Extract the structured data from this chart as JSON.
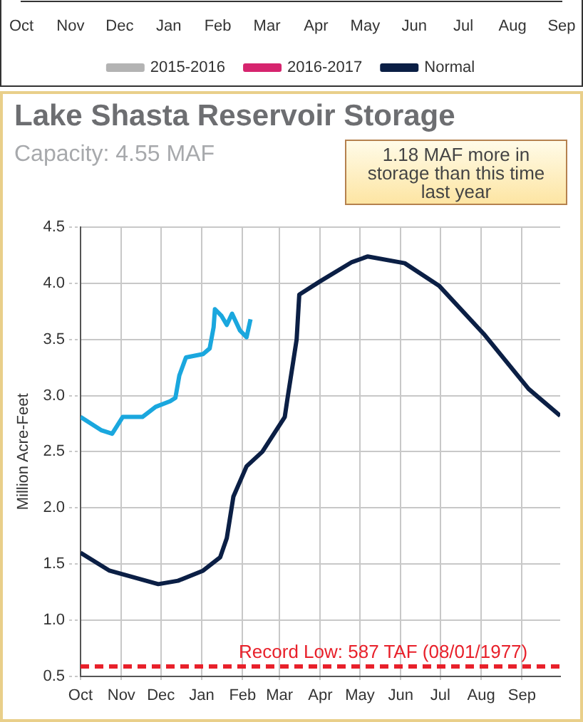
{
  "chart_data": [
    {
      "type": "other",
      "legend": "bottom",
      "categories": [
        "Oct",
        "Nov",
        "Dec",
        "Jan",
        "Feb",
        "Mar",
        "Apr",
        "May",
        "Jun",
        "Jul",
        "Aug",
        "Sep"
      ],
      "series": [
        {
          "name": "2015-2016",
          "color": "#b3b3b3",
          "values": [
            null,
            null,
            null,
            null,
            null,
            null,
            null,
            null,
            null,
            null,
            null,
            null
          ]
        },
        {
          "name": "2016-2017",
          "color": "#d6246e",
          "values": [
            null,
            null,
            null,
            null,
            null,
            null,
            null,
            null,
            null,
            null,
            null,
            null
          ]
        },
        {
          "name": "Normal",
          "color": "#0b1f45",
          "values": [
            null,
            null,
            null,
            null,
            null,
            null,
            null,
            null,
            null,
            null,
            null,
            null
          ]
        }
      ]
    },
    {
      "type": "line",
      "title": "Lake Shasta Reservoir Storage",
      "subtitle": "Capacity: 4.55 MAF",
      "ylabel": "Million Acre-Feet",
      "annotations": [
        "1.18 MAF more in storage than this time last year"
      ],
      "xlim": [
        "2016-10-01",
        "2017-09-30"
      ],
      "xticks": [
        {
          "value": "2016-10-01",
          "label": "Oct"
        },
        {
          "value": "2016-11-01",
          "label": "Nov"
        },
        {
          "value": "2016-12-01",
          "label": "Dec"
        },
        {
          "value": "2017-01-01",
          "label": "Jan"
        },
        {
          "value": "2017-02-01",
          "label": "Feb"
        },
        {
          "value": "2017-03-01",
          "label": "Mar"
        },
        {
          "value": "2017-04-01",
          "label": "Apr"
        },
        {
          "value": "2017-05-01",
          "label": "May"
        },
        {
          "value": "2017-06-01",
          "label": "Jun"
        },
        {
          "value": "2017-07-01",
          "label": "Jul"
        },
        {
          "value": "2017-08-01",
          "label": "Aug"
        },
        {
          "value": "2017-09-01",
          "label": "Sep"
        }
      ],
      "ylim": [
        0.5,
        4.5
      ],
      "yticks": [
        0.5,
        {
          "value": 1,
          "label": "1.0"
        },
        1.5,
        {
          "value": 2,
          "label": "2.0"
        },
        2.5,
        {
          "value": 3,
          "label": "3.0"
        },
        3.5,
        {
          "value": 4,
          "label": "4.0"
        },
        4.5
      ],
      "grid": true,
      "ref_lines": [
        {
          "axis": "y",
          "value": 0.587,
          "label": "Record Low: 587 TAF (08/01/1977)",
          "color": "#e8202a",
          "line_style": "dashed"
        }
      ],
      "series": [
        {
          "color": "#0b1f45",
          "x": [
            "2016-10-01",
            "2016-10-23",
            "2016-11-29",
            "2016-12-14",
            "2017-01-02",
            "2017-01-15",
            "2017-01-20",
            "2017-01-25",
            "2017-02-04",
            "2017-02-16",
            "2017-03-05",
            "2017-03-07",
            "2017-03-14",
            "2017-03-16",
            "2017-04-01",
            "2017-04-25",
            "2017-05-07",
            "2017-06-04",
            "2017-06-30",
            "2017-08-03",
            "2017-09-06",
            "2017-09-30"
          ],
          "values": [
            1.6,
            1.44,
            1.32,
            1.35,
            1.44,
            1.56,
            1.73,
            2.1,
            2.37,
            2.5,
            2.81,
            2.97,
            3.5,
            3.9,
            4.02,
            4.19,
            4.24,
            4.18,
            3.98,
            3.55,
            3.06,
            2.82
          ]
        },
        {
          "color": "#1aa7de",
          "x": [
            "2016-10-01",
            "2016-10-17",
            "2016-10-25",
            "2016-11-02",
            "2016-11-17",
            "2016-11-27",
            "2016-12-08",
            "2016-12-12",
            "2016-12-15",
            "2016-12-20",
            "2017-01-02",
            "2017-01-07",
            "2017-01-10",
            "2017-01-11",
            "2017-01-16",
            "2017-01-20",
            "2017-01-24",
            "2017-01-30",
            "2017-02-04",
            "2017-02-07"
          ],
          "values": [
            2.81,
            2.69,
            2.66,
            2.81,
            2.81,
            2.9,
            2.95,
            2.98,
            3.18,
            3.34,
            3.37,
            3.42,
            3.61,
            3.77,
            3.71,
            3.63,
            3.73,
            3.58,
            3.52,
            3.68
          ]
        }
      ]
    }
  ]
}
